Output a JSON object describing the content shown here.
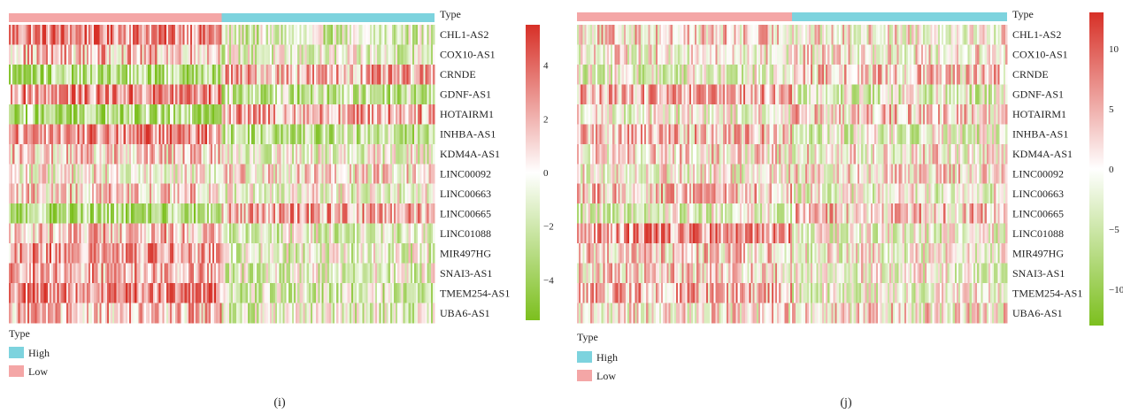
{
  "chart_data": [
    {
      "type": "heatmap",
      "panel_label": "(i)",
      "annotation_title": "Type",
      "rows": [
        "CHL1-AS2",
        "COX10-AS1",
        "CRNDE",
        "GDNF-AS1",
        "HOTAIRM1",
        "INHBA-AS1",
        "KDM4A-AS1",
        "LINC00092",
        "LINC00663",
        "LINC00665",
        "LINC01088",
        "MIR497HG",
        "SNAI3-AS1",
        "TMEM254-AS1",
        "UBA6-AS1"
      ],
      "groups": [
        {
          "name": "Low",
          "color": "#f4a6a6",
          "fraction": 0.5
        },
        {
          "name": "High",
          "color": "#7dd3de",
          "fraction": 0.5
        }
      ],
      "legend_title": "Type",
      "legend_items": [
        {
          "name": "High",
          "color": "#7dd3de"
        },
        {
          "name": "Low",
          "color": "#f4a6a6"
        }
      ],
      "colorbar": {
        "ticks": [
          4,
          2,
          0,
          -2,
          -4
        ],
        "tick_labels": [
          "4",
          "2",
          "0",
          "−2",
          "−4"
        ],
        "range": [
          -5.5,
          5.5
        ],
        "colors": {
          "high": "#d73027",
          "mid": "#ffffff",
          "low": "#7cbf1e"
        }
      },
      "row_mean_low": [
        3.2,
        1.5,
        -3.0,
        3.0,
        -3.0,
        3.0,
        1.0,
        0.0,
        1.0,
        -3.0,
        1.5,
        2.5,
        2.0,
        3.0,
        1.5
      ],
      "row_mean_high": [
        -1.5,
        -1.0,
        1.8,
        -2.2,
        2.2,
        -2.2,
        -0.5,
        0.5,
        -0.5,
        2.0,
        -1.0,
        -1.0,
        -1.0,
        -1.5,
        -1.0
      ],
      "n_columns": 230
    },
    {
      "type": "heatmap",
      "panel_label": "(j)",
      "annotation_title": "Type",
      "rows": [
        "CHL1-AS2",
        "COX10-AS1",
        "CRNDE",
        "GDNF-AS1",
        "HOTAIRM1",
        "INHBA-AS1",
        "KDM4A-AS1",
        "LINC00092",
        "LINC00663",
        "LINC00665",
        "LINC01088",
        "MIR497HG",
        "SNAI3-AS1",
        "TMEM254-AS1",
        "UBA6-AS1"
      ],
      "groups": [
        {
          "name": "Low",
          "color": "#f4a6a6",
          "fraction": 0.5
        },
        {
          "name": "High",
          "color": "#7dd3de",
          "fraction": 0.5
        }
      ],
      "legend_title": "Type",
      "legend_items": [
        {
          "name": "High",
          "color": "#7dd3de"
        },
        {
          "name": "Low",
          "color": "#f4a6a6"
        }
      ],
      "colorbar": {
        "ticks": [
          10,
          5,
          0,
          -5,
          -10
        ],
        "tick_labels": [
          "10",
          "5",
          "0",
          "−5",
          "−10"
        ],
        "range": [
          -13,
          13
        ],
        "colors": {
          "high": "#d73027",
          "mid": "#ffffff",
          "low": "#7cbf1e"
        }
      },
      "row_mean_low": [
        2.0,
        0.5,
        -2.0,
        4.0,
        -1.0,
        3.5,
        1.0,
        0.0,
        3.0,
        -2.0,
        6.0,
        2.0,
        2.0,
        4.0,
        1.0
      ],
      "row_mean_high": [
        0.5,
        0.5,
        2.5,
        -2.5,
        2.5,
        -2.0,
        0.5,
        1.5,
        -1.0,
        3.0,
        -1.5,
        -0.5,
        -0.5,
        -1.0,
        1.0
      ],
      "n_columns": 230
    }
  ]
}
